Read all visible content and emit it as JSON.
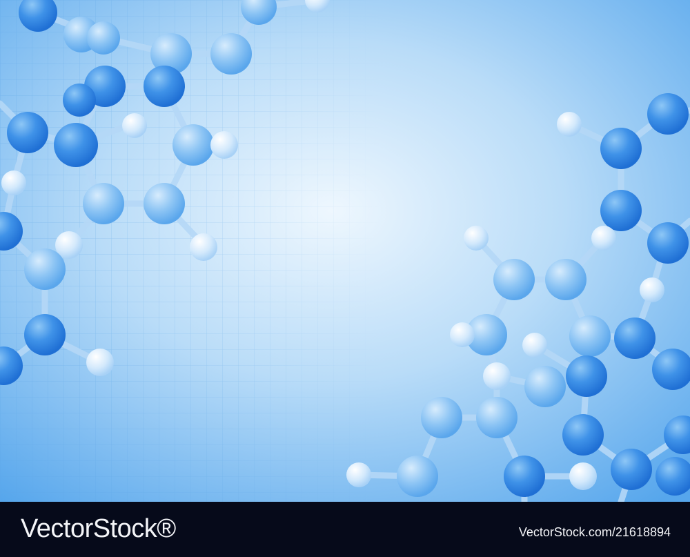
{
  "image": {
    "subject": "blue-molecules-background",
    "colors": {
      "background_center": "#eef7fe",
      "background_edge": "#56a6ec",
      "atom": "#3b8ee8",
      "atom_light": "#dbeefc",
      "bond": "#a9d1f6",
      "grid_line": "#5ea6e8"
    }
  },
  "footer": {
    "brand": "VectorStock®",
    "image_id": "VectorStock.com/21618894",
    "background_color": "#060a1a"
  }
}
